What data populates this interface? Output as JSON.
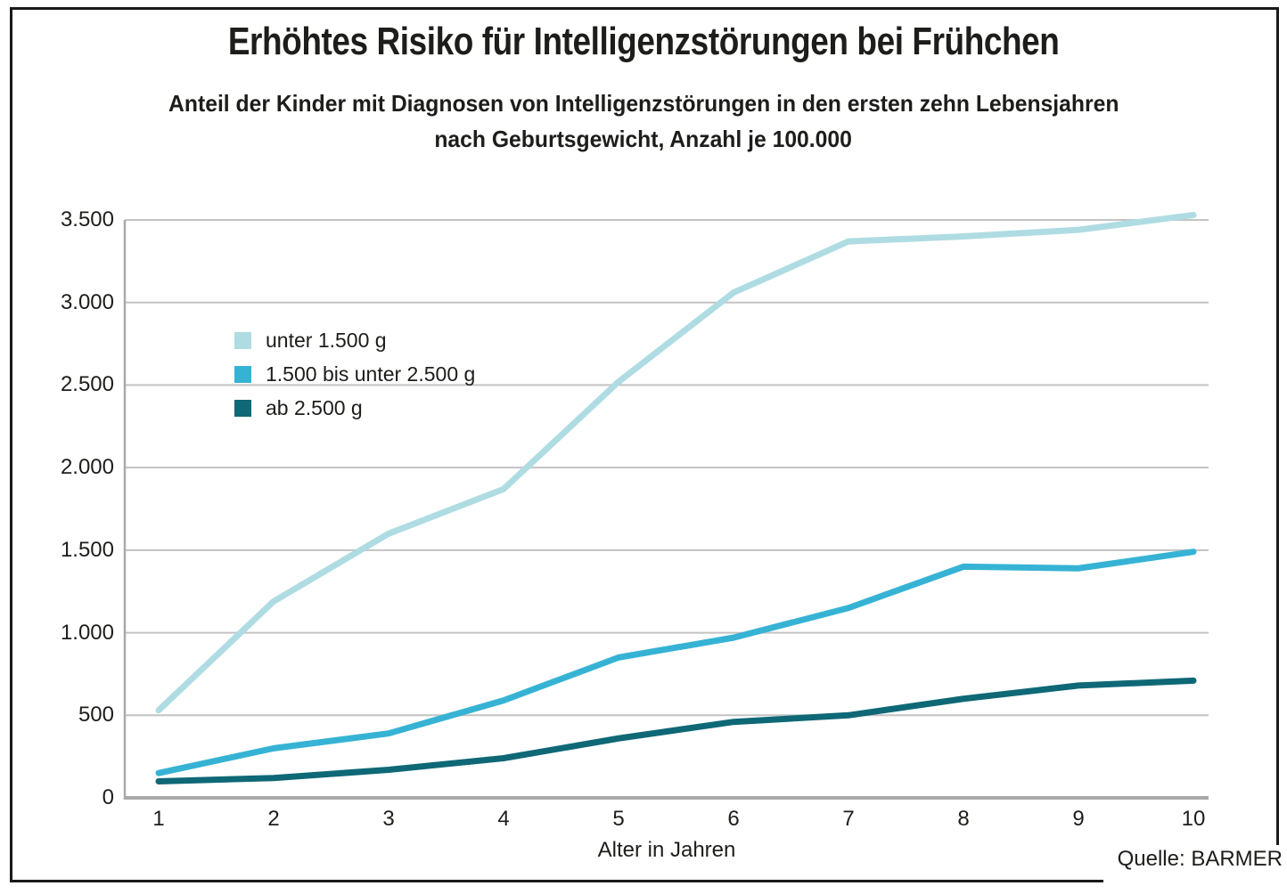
{
  "header": {
    "title": "Erhöhtes Risiko für Intelligenzstörungen bei Frühchen",
    "subtitle_line1": "Anteil der Kinder mit Diagnosen von Intelligenzstörungen in den ersten zehn Lebensjahren",
    "subtitle_line2": "nach Geburtsgewicht, Anzahl je 100.000"
  },
  "source": "Quelle: BARMER",
  "colors": {
    "grid": "#c3c3c3",
    "axis": "#a9a9a9",
    "text": "#1d1d1b",
    "frame": "#1a1a1a"
  },
  "chart_data": {
    "type": "line",
    "title": "Erhöhtes Risiko für Intelligenzstörungen bei Frühchen",
    "subtitle": "Anteil der Kinder mit Diagnosen von Intelligenzstörungen in den ersten zehn Lebensjahren nach Geburtsgewicht, Anzahl je 100.000",
    "xlabel": "Alter in Jahren",
    "ylabel": "",
    "x": [
      1,
      2,
      3,
      4,
      5,
      6,
      7,
      8,
      9,
      10
    ],
    "ylim": [
      0,
      3500
    ],
    "yticks": [
      {
        "value": 0,
        "label": "0"
      },
      {
        "value": 500,
        "label": "500"
      },
      {
        "value": 1000,
        "label": "1.000"
      },
      {
        "value": 1500,
        "label": "1.500"
      },
      {
        "value": 2000,
        "label": "2.000"
      },
      {
        "value": 2500,
        "label": "2.500"
      },
      {
        "value": 3000,
        "label": "3.000"
      },
      {
        "value": 3500,
        "label": "3.500"
      }
    ],
    "grid": true,
    "legend_position": "inside-upper-left",
    "series": [
      {
        "name": "unter 1.500 g",
        "color": "#aedce2",
        "values": [
          530,
          1190,
          1600,
          1870,
          2520,
          3060,
          3370,
          3400,
          3440,
          3530
        ]
      },
      {
        "name": "1.500 bis unter 2.500 g",
        "color": "#36b3d4",
        "values": [
          150,
          300,
          390,
          590,
          850,
          970,
          1150,
          1400,
          1390,
          1490
        ]
      },
      {
        "name": "ab 2.500 g",
        "color": "#0e6876",
        "values": [
          100,
          120,
          170,
          240,
          360,
          460,
          500,
          600,
          680,
          710
        ]
      }
    ],
    "source": "Quelle: BARMER"
  }
}
